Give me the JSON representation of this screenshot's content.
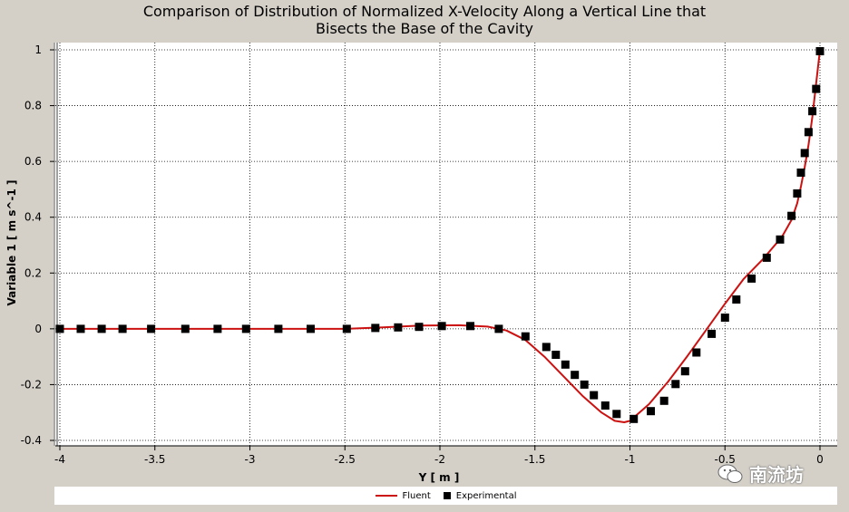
{
  "chart_data": {
    "type": "line",
    "title": "Comparison of Distribution of Normalized X-Velocity Along a Vertical Line that\nBisects the Base of the Cavity",
    "xlabel": "Y [ m ]",
    "ylabel": "Variable 1 [ m s^-1 ]",
    "xlim": [
      -4,
      0
    ],
    "ylim": [
      -0.4,
      1
    ],
    "x_ticks": [
      -4,
      -3.5,
      -3,
      -2.5,
      -2,
      -1.5,
      -1,
      -0.5,
      0
    ],
    "x_tick_labels": [
      "-4",
      "-3.5",
      "-3",
      "-2.5",
      "-2",
      "-1.5",
      "-1",
      "-0.5",
      "0"
    ],
    "y_ticks": [
      -0.4,
      -0.2,
      0,
      0.2,
      0.4,
      0.6,
      0.8,
      1
    ],
    "y_tick_labels": [
      "-0.4",
      "-0.2",
      "0",
      "0.2",
      "0.4",
      "0.6",
      "0.8",
      "1"
    ],
    "grid": true,
    "legend_position": "bottom",
    "series": [
      {
        "name": "Fluent",
        "style": "line",
        "color": "#cc1111",
        "x": [
          -4,
          -3.5,
          -3,
          -2.5,
          -2.3,
          -2.1,
          -1.9,
          -1.75,
          -1.65,
          -1.55,
          -1.45,
          -1.35,
          -1.25,
          -1.15,
          -1.08,
          -1.03,
          -1.0,
          -0.95,
          -0.9,
          -0.85,
          -0.8,
          -0.7,
          -0.6,
          -0.5,
          -0.4,
          -0.3,
          -0.2,
          -0.15,
          -0.12,
          -0.1,
          -0.08,
          -0.06,
          -0.04,
          -0.02,
          0
        ],
        "y": [
          0,
          0,
          0,
          0,
          0.005,
          0.012,
          0.013,
          0.008,
          -0.006,
          -0.04,
          -0.1,
          -0.17,
          -0.24,
          -0.3,
          -0.33,
          -0.335,
          -0.33,
          -0.3,
          -0.27,
          -0.23,
          -0.19,
          -0.1,
          -0.005,
          0.09,
          0.18,
          0.25,
          0.33,
          0.39,
          0.45,
          0.51,
          0.58,
          0.66,
          0.76,
          0.88,
          1.0
        ]
      },
      {
        "name": "Experimental",
        "style": "scatter",
        "color": "#000000",
        "x": [
          -4,
          -3.89,
          -3.78,
          -3.67,
          -3.52,
          -3.34,
          -3.17,
          -3.02,
          -2.85,
          -2.68,
          -2.49,
          -2.34,
          -2.22,
          -2.11,
          -1.99,
          -1.84,
          -1.69,
          -1.55,
          -1.44,
          -1.39,
          -1.34,
          -1.29,
          -1.24,
          -1.19,
          -1.13,
          -1.07,
          -0.98,
          -0.89,
          -0.82,
          -0.76,
          -0.71,
          -0.65,
          -0.57,
          -0.5,
          -0.44,
          -0.36,
          -0.28,
          -0.21,
          -0.15,
          -0.12,
          -0.1,
          -0.08,
          -0.06,
          -0.04,
          -0.02,
          0
        ],
        "y": [
          0,
          0,
          0,
          0,
          0,
          0,
          0,
          0,
          0,
          0,
          0,
          0.003,
          0.005,
          0.007,
          0.01,
          0.01,
          0.0,
          -0.027,
          -0.065,
          -0.093,
          -0.128,
          -0.165,
          -0.2,
          -0.238,
          -0.275,
          -0.305,
          -0.323,
          -0.295,
          -0.258,
          -0.198,
          -0.152,
          -0.085,
          -0.018,
          0.04,
          0.105,
          0.18,
          0.255,
          0.32,
          0.405,
          0.485,
          0.56,
          0.63,
          0.705,
          0.78,
          0.86,
          0.995
        ]
      }
    ]
  },
  "legend": {
    "fluent_label": "Fluent",
    "experimental_label": "Experimental"
  },
  "watermark": {
    "text": "南流坊"
  }
}
